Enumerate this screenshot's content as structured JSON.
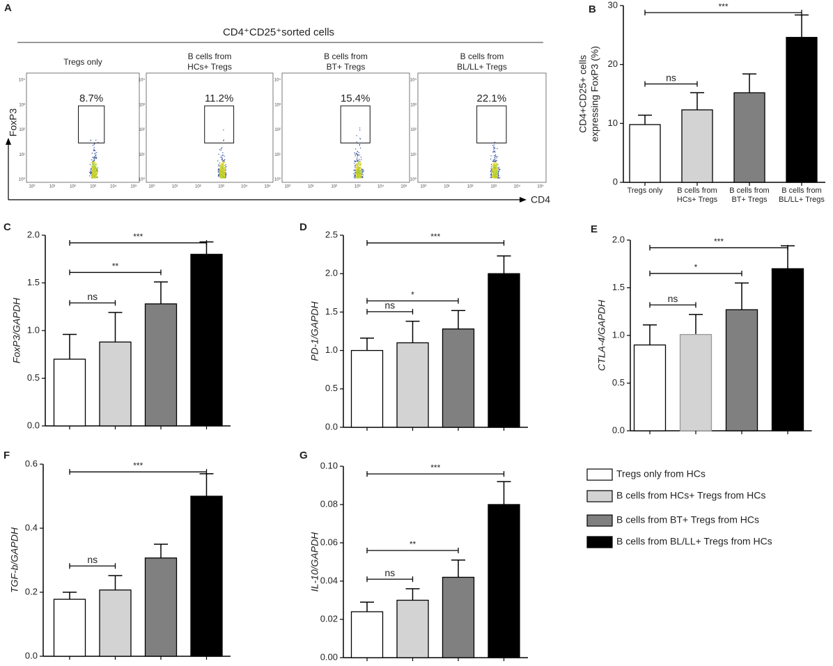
{
  "flow": {
    "panel": "A",
    "title": "CD4⁺CD25⁺sorted cells",
    "x_label": "CD4",
    "y_label": "FoxP3",
    "xticks": [
      "10⁰",
      "10¹",
      "10²",
      "10³",
      "10⁴",
      "10⁵"
    ],
    "yticks": [
      "10⁰",
      "10¹",
      "10²",
      "10³",
      "10⁴"
    ],
    "panels": [
      {
        "title": [
          "Tregs only"
        ],
        "gate": "8.7%"
      },
      {
        "title": [
          "B cells from",
          "HCs+ Tregs"
        ],
        "gate": "11.2%"
      },
      {
        "title": [
          "B cells from",
          "BT+ Tregs"
        ],
        "gate": "15.4%"
      },
      {
        "title": [
          "B cells from",
          "BL/LL+ Tregs"
        ],
        "gate": "22.1%"
      }
    ]
  },
  "chart_data": [
    {
      "type": "bar",
      "panel": "B",
      "y_label": [
        "CD4+CD25+ cells",
        "expressing FoxP3 (%)"
      ],
      "categories": [
        [
          "Tregs only"
        ],
        [
          "B cells from",
          "HCs+ Tregs"
        ],
        [
          "B cells from",
          "BT+ Tregs"
        ],
        [
          "B cells from",
          "BL/LL+ Tregs"
        ]
      ],
      "values": [
        9.8,
        12.3,
        15.2,
        24.6
      ],
      "errors": [
        1.6,
        2.9,
        3.2,
        3.8
      ],
      "colors": [
        "#ffffff",
        "#d3d3d3",
        "#808080",
        "#000000"
      ],
      "ylim": [
        0,
        30
      ],
      "yticks": [
        0,
        10,
        20,
        30
      ],
      "brackets": [
        {
          "from": 0,
          "to": 1,
          "label": "ns"
        },
        {
          "from": 0,
          "to": 3,
          "label": "***"
        }
      ]
    },
    {
      "type": "bar",
      "panel": "C",
      "y_label": [
        "FoxP3/GAPDH"
      ],
      "categories": [
        null,
        null,
        null,
        null
      ],
      "values": [
        0.7,
        0.88,
        1.28,
        1.8
      ],
      "errors": [
        0.26,
        0.31,
        0.23,
        0.13
      ],
      "colors": [
        "#ffffff",
        "#d3d3d3",
        "#808080",
        "#000000"
      ],
      "ylim": [
        0,
        2.0
      ],
      "yticks": [
        {
          "value": 0,
          "label": "0.0"
        },
        0.5,
        {
          "value": 1,
          "label": "1.0"
        },
        1.5,
        {
          "value": 2,
          "label": "2.0"
        }
      ],
      "brackets": [
        {
          "from": 0,
          "to": 1,
          "label": "ns"
        },
        {
          "from": 0,
          "to": 2,
          "label": "**"
        },
        {
          "from": 0,
          "to": 3,
          "label": "***"
        }
      ]
    },
    {
      "type": "bar",
      "panel": "D",
      "y_label": [
        "PD-1/GAPDH"
      ],
      "categories": [
        null,
        null,
        null,
        null
      ],
      "values": [
        1.0,
        1.1,
        1.28,
        2.0
      ],
      "errors": [
        0.16,
        0.28,
        0.24,
        0.23
      ],
      "colors": [
        "#ffffff",
        "#d3d3d3",
        "#808080",
        "#000000"
      ],
      "ylim": [
        0,
        2.5
      ],
      "yticks": [
        {
          "value": 0,
          "label": "0.0"
        },
        0.5,
        {
          "value": 1,
          "label": "1.0"
        },
        1.5,
        {
          "value": 2,
          "label": "2.0"
        },
        2.5
      ],
      "brackets": [
        {
          "from": 0,
          "to": 1,
          "label": "ns"
        },
        {
          "from": 0,
          "to": 2,
          "label": "*"
        },
        {
          "from": 0,
          "to": 3,
          "label": "***"
        }
      ]
    },
    {
      "type": "bar",
      "panel": "E",
      "y_label": [
        "CTLA-4/GAPDH"
      ],
      "categories": [
        null,
        null,
        null,
        null
      ],
      "values": [
        0.9,
        1.01,
        1.27,
        1.7
      ],
      "errors": [
        0.21,
        0.21,
        0.28,
        0.24
      ],
      "colors": [
        "#ffffff",
        "#d3d3d3",
        "#808080",
        "#000000"
      ],
      "ylim": [
        0,
        2.0
      ],
      "yticks": [
        {
          "value": 0,
          "label": "0.0"
        },
        0.5,
        {
          "value": 1,
          "label": "1.0"
        },
        1.5,
        {
          "value": 2,
          "label": "2.0"
        }
      ],
      "brackets": [
        {
          "from": 0,
          "to": 1,
          "label": "ns"
        },
        {
          "from": 0,
          "to": 2,
          "label": "*"
        },
        {
          "from": 0,
          "to": 3,
          "label": "***"
        }
      ]
    },
    {
      "type": "bar",
      "panel": "F",
      "y_label": [
        "TGF-b/GAPDH"
      ],
      "categories": [
        null,
        null,
        null,
        null
      ],
      "values": [
        0.178,
        0.207,
        0.307,
        0.5
      ],
      "errors": [
        0.022,
        0.045,
        0.043,
        0.07
      ],
      "colors": [
        "#ffffff",
        "#d3d3d3",
        "#808080",
        "#000000"
      ],
      "ylim": [
        0,
        0.6
      ],
      "yticks": [
        {
          "value": 0,
          "label": "0.0"
        },
        0.2,
        0.4,
        0.6
      ],
      "brackets": [
        {
          "from": 0,
          "to": 1,
          "label": "ns"
        },
        {
          "from": 0,
          "to": 3,
          "label": "***"
        }
      ]
    },
    {
      "type": "bar",
      "panel": "G",
      "y_label": [
        "IL-10/GAPDH"
      ],
      "categories": [
        null,
        null,
        null,
        null
      ],
      "values": [
        0.024,
        0.03,
        0.042,
        0.08
      ],
      "errors": [
        0.005,
        0.006,
        0.009,
        0.012
      ],
      "colors": [
        "#ffffff",
        "#d3d3d3",
        "#808080",
        "#000000"
      ],
      "ylim": [
        0,
        0.1
      ],
      "yticks": [
        {
          "value": 0,
          "label": "0.00"
        },
        {
          "value": 0.02,
          "label": "0.02"
        },
        {
          "value": 0.04,
          "label": "0.04"
        },
        {
          "value": 0.06,
          "label": "0.06"
        },
        {
          "value": 0.08,
          "label": "0.08"
        },
        {
          "value": 0.1,
          "label": "0.10"
        }
      ],
      "brackets": [
        {
          "from": 0,
          "to": 1,
          "label": "ns"
        },
        {
          "from": 0,
          "to": 2,
          "label": "**"
        },
        {
          "from": 0,
          "to": 3,
          "label": "***"
        }
      ]
    }
  ],
  "legend": [
    {
      "name": "Tregs only from HCs",
      "color": "#ffffff"
    },
    {
      "name": "B cells from HCs+ Tregs from HCs",
      "color": "#d3d3d3"
    },
    {
      "name": "B cells from BT+ Tregs from HCs",
      "color": "#808080"
    },
    {
      "name": "B cells from BL/LL+ Tregs from HCs",
      "color": "#000000"
    }
  ]
}
